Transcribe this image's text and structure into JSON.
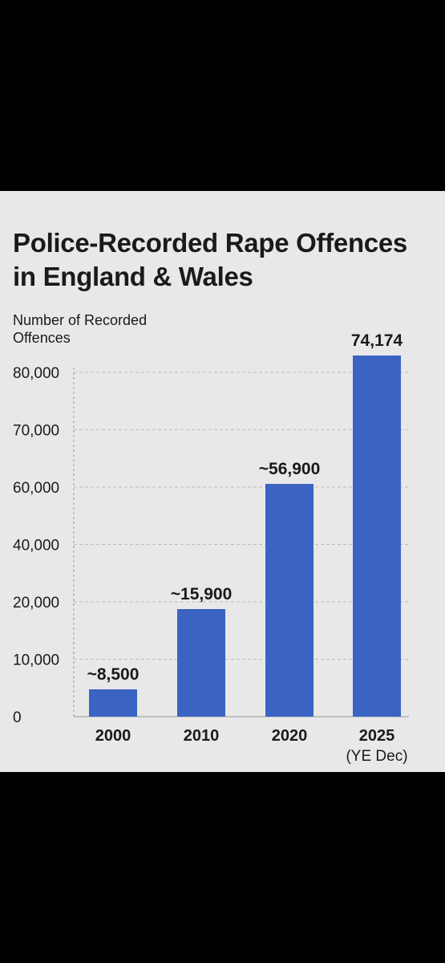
{
  "colors": {
    "page_bg": "#000000",
    "card_bg": "#e8e8e8",
    "bar": "#3a63c2",
    "grid": "#bdbdbd",
    "text": "#1a1a1a"
  },
  "chart_data": {
    "type": "bar",
    "title_line1": "Police-Recorded Rape Offences",
    "title_line2": "in England & Wales",
    "ylabel_line1": "Number of Recorded",
    "ylabel_line2": "Offences",
    "categories": [
      "2000",
      "2010",
      "2020",
      "2025"
    ],
    "category_sublabels": [
      "",
      "",
      "",
      "(YE Dec)"
    ],
    "values": [
      8500,
      15900,
      56900,
      74174
    ],
    "value_labels": [
      "~8,500",
      "~15,900",
      "~56,900",
      "74,174"
    ],
    "yticks": [
      {
        "label": "0",
        "value": 0
      },
      {
        "label": "10,000",
        "value": 10000
      },
      {
        "label": "20,000",
        "value": 20000
      },
      {
        "label": "40,000",
        "value": 40000
      },
      {
        "label": "60,000",
        "value": 60000
      },
      {
        "label": "70,000",
        "value": 70000
      },
      {
        "label": "80,000",
        "value": 80000
      }
    ],
    "grid": true,
    "legend": "none"
  }
}
